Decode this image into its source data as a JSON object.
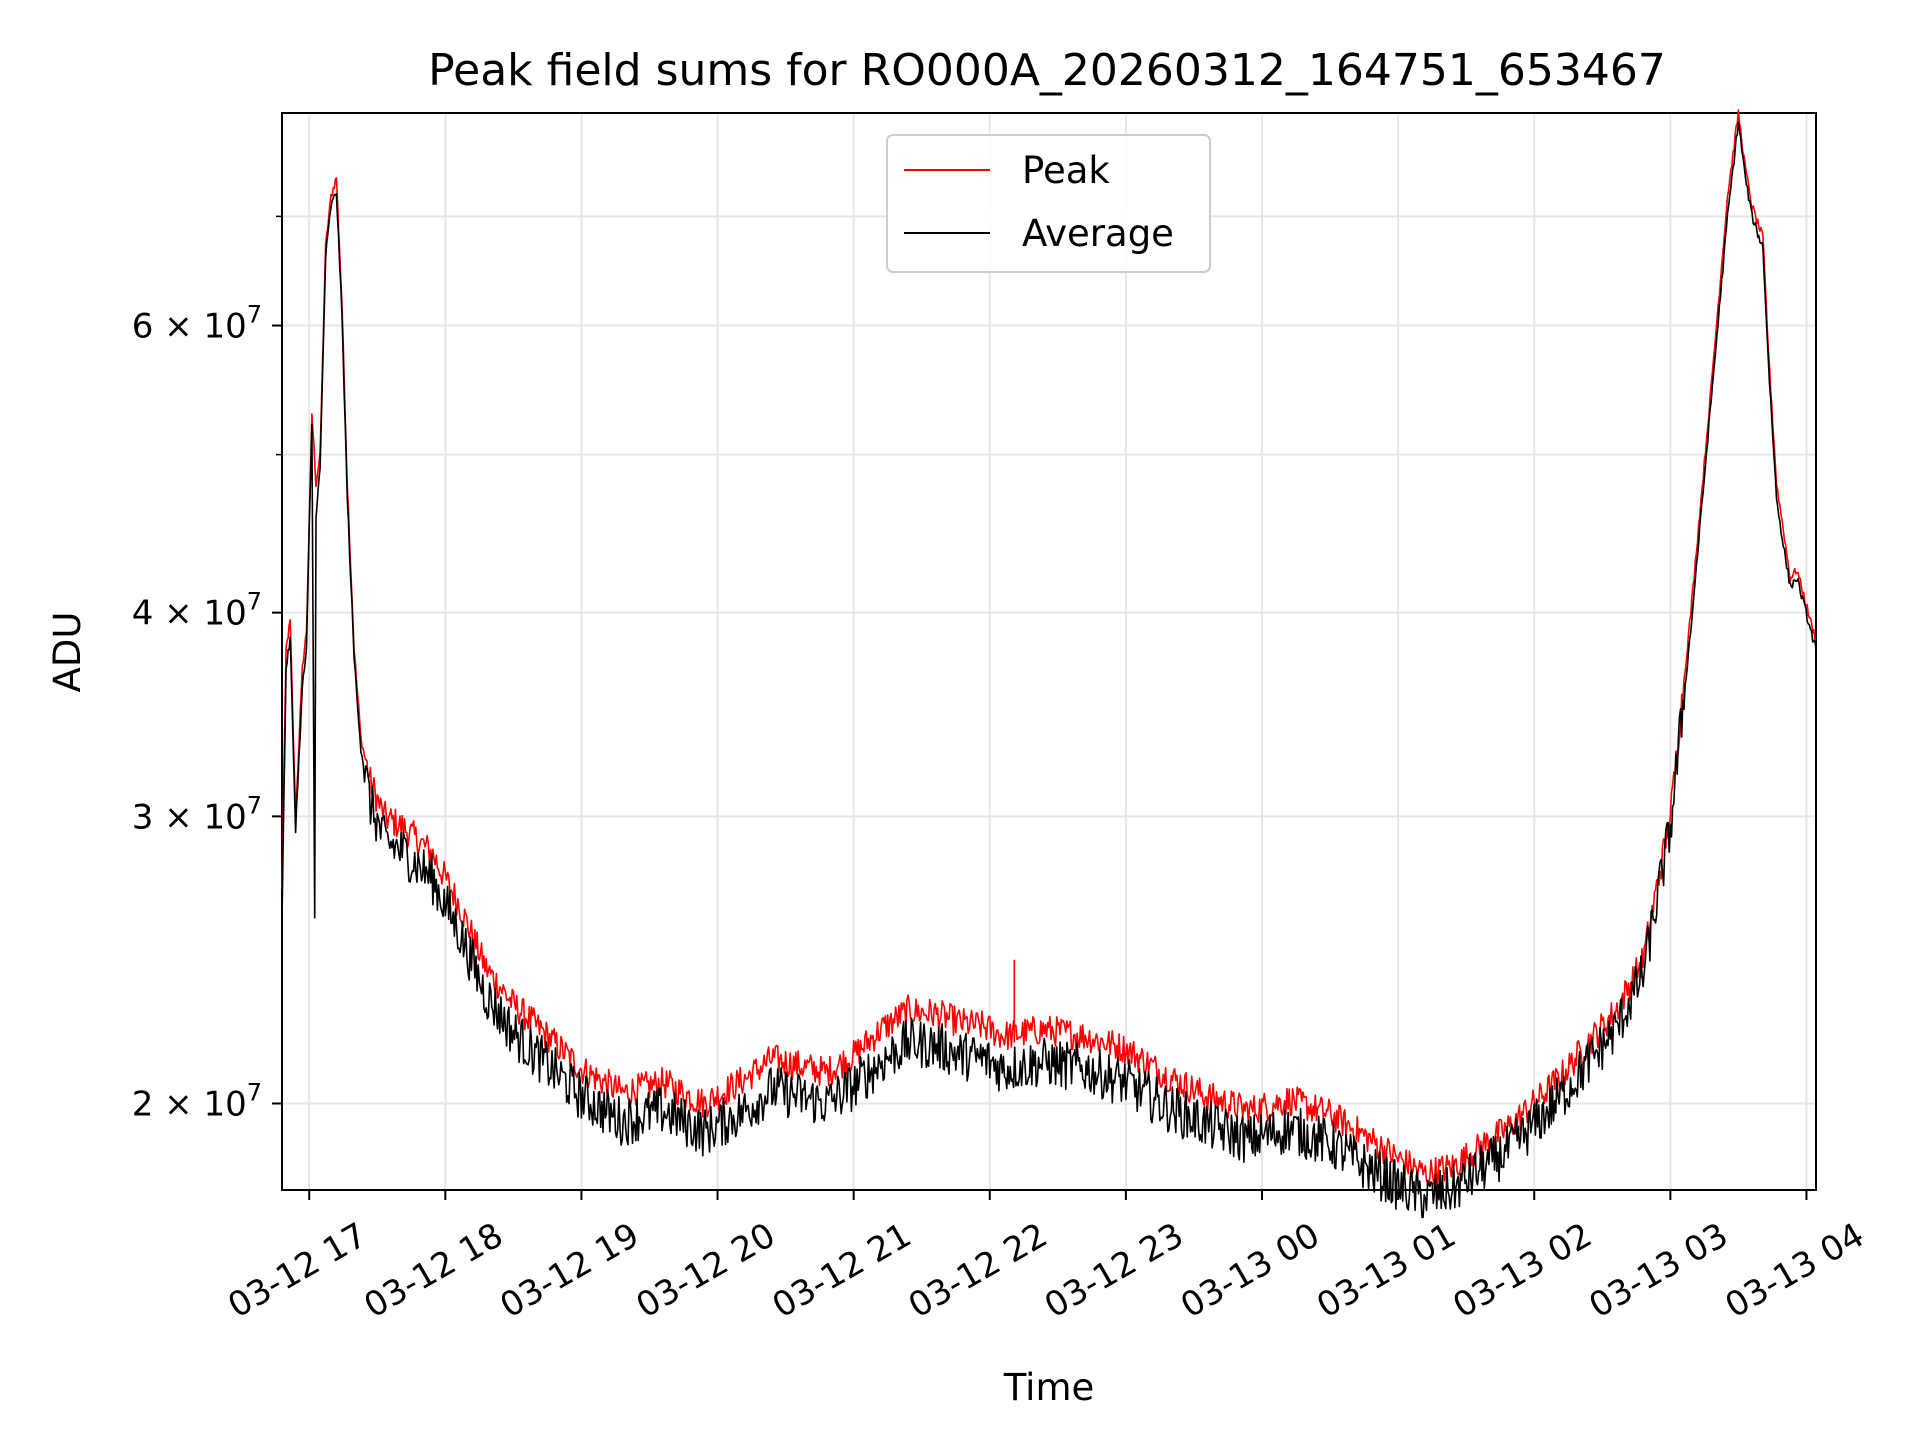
{
  "chart_data": {
    "type": "line",
    "title": "Peak field sums for RO000A_20260312_164751_653467",
    "xlabel": "Time",
    "ylabel": "ADU",
    "y_scale": "log",
    "ylim": [
      17700000,
      81000000
    ],
    "xlim_hours": [
      16.8,
      28.07
    ],
    "grid": true,
    "legend_position": "upper center",
    "x_ticks": [
      {
        "h": 17,
        "label": "03-12 17"
      },
      {
        "h": 18,
        "label": "03-12 18"
      },
      {
        "h": 19,
        "label": "03-12 19"
      },
      {
        "h": 20,
        "label": "03-12 20"
      },
      {
        "h": 21,
        "label": "03-12 21"
      },
      {
        "h": 22,
        "label": "03-12 22"
      },
      {
        "h": 23,
        "label": "03-12 23"
      },
      {
        "h": 24,
        "label": "03-13 00"
      },
      {
        "h": 25,
        "label": "03-13 01"
      },
      {
        "h": 26,
        "label": "03-13 02"
      },
      {
        "h": 27,
        "label": "03-13 03"
      },
      {
        "h": 28,
        "label": "03-13 04"
      }
    ],
    "y_ticks": [
      {
        "value": 20000000,
        "mant": "2",
        "exp": "7"
      },
      {
        "value": 30000000,
        "mant": "3",
        "exp": "7"
      },
      {
        "value": 40000000,
        "mant": "4",
        "exp": "7"
      },
      {
        "value": 60000000,
        "mant": "6",
        "exp": "7"
      }
    ],
    "y_minor_ticks": [
      50000000,
      70000000
    ],
    "series": [
      {
        "name": "Peak",
        "color": "#ff0000",
        "x_hours": [
          16.8,
          16.83,
          16.86,
          16.9,
          16.95,
          16.98,
          17.02,
          17.05,
          17.08,
          17.12,
          17.16,
          17.2,
          17.24,
          17.28,
          17.33,
          17.38,
          17.45,
          17.55,
          17.7,
          17.9,
          18.1,
          18.3,
          18.5,
          18.7,
          19.0,
          19.3,
          19.6,
          19.9,
          20.2,
          20.4,
          20.6,
          20.8,
          21.0,
          21.2,
          21.4,
          21.6,
          21.8,
          21.95,
          22.1,
          22.4,
          22.7,
          23.0,
          23.3,
          23.6,
          23.9,
          24.2,
          24.5,
          24.8,
          25.0,
          25.2,
          25.4,
          25.6,
          25.8,
          26.0,
          26.2,
          26.4,
          26.6,
          26.8,
          27.0,
          27.15,
          27.3,
          27.42,
          27.5,
          27.55,
          27.6,
          27.65,
          27.68,
          27.72,
          27.78,
          27.83,
          27.88,
          27.93,
          27.98,
          28.03,
          28.07
        ],
        "values": [
          27000000,
          38000000,
          39500000,
          30000000,
          37000000,
          39000000,
          53000000,
          48000000,
          50000000,
          67000000,
          72000000,
          74000000,
          62000000,
          48000000,
          38000000,
          33500000,
          31500000,
          30000000,
          29500000,
          28500000,
          26500000,
          24200000,
          23000000,
          22200000,
          21000000,
          20300000,
          20600000,
          20000000,
          20700000,
          21300000,
          21100000,
          20900000,
          21400000,
          22200000,
          22800000,
          22700000,
          22400000,
          22300000,
          22000000,
          22200000,
          22000000,
          21600000,
          20800000,
          20200000,
          19800000,
          20100000,
          19700000,
          19000000,
          18500000,
          18100000,
          18300000,
          18800000,
          19300000,
          20000000,
          20800000,
          21800000,
          22800000,
          24500000,
          30000000,
          40000000,
          55000000,
          72000000,
          81000000,
          75000000,
          71000000,
          69000000,
          68000000,
          58000000,
          48000000,
          45000000,
          42000000,
          42500000,
          41000000,
          39500000,
          38500000
        ]
      },
      {
        "name": "Average",
        "color": "#000000",
        "x_hours": [
          16.8,
          16.83,
          16.86,
          16.9,
          16.95,
          16.98,
          17.0,
          17.02,
          17.04,
          17.05,
          17.08,
          17.12,
          17.16,
          17.2,
          17.24,
          17.28,
          17.33,
          17.38,
          17.45,
          17.55,
          17.7,
          17.9,
          18.1,
          18.3,
          18.5,
          18.7,
          19.0,
          19.3,
          19.6,
          19.9,
          20.2,
          20.4,
          20.6,
          20.8,
          21.0,
          21.2,
          21.4,
          21.6,
          21.8,
          21.95,
          22.1,
          22.4,
          22.7,
          23.0,
          23.3,
          23.6,
          23.9,
          24.2,
          24.5,
          24.8,
          25.0,
          25.2,
          25.4,
          25.6,
          25.8,
          26.0,
          26.2,
          26.4,
          26.6,
          26.8,
          27.0,
          27.15,
          27.3,
          27.42,
          27.5,
          27.55,
          27.6,
          27.65,
          27.68,
          27.72,
          27.78,
          27.83,
          27.88,
          27.93,
          27.98,
          28.03,
          28.07
        ],
        "values": [
          26000000,
          37000000,
          38500000,
          29500000,
          36000000,
          38000000,
          45000000,
          52000000,
          26000000,
          46000000,
          49000000,
          66000000,
          71000000,
          72500000,
          61000000,
          47000000,
          37500000,
          33000000,
          30500000,
          29000000,
          28500000,
          27500000,
          25500000,
          23300000,
          22100000,
          21300000,
          20200000,
          19500000,
          19800000,
          19200000,
          19800000,
          20400000,
          20200000,
          20000000,
          20500000,
          21200000,
          21800000,
          21700000,
          21400000,
          21300000,
          21000000,
          21200000,
          21000000,
          20600000,
          19900000,
          19400000,
          19000000,
          19300000,
          18900000,
          18200000,
          17800000,
          17500000,
          17700000,
          18200000,
          18700000,
          19400000,
          20200000,
          21200000,
          22200000,
          24000000,
          29500000,
          39000000,
          54000000,
          70000000,
          80000000,
          74000000,
          70000000,
          68000000,
          67000000,
          57000000,
          47000000,
          44000000,
          41500000,
          42000000,
          40500000,
          39000000,
          38000000
        ]
      }
    ]
  }
}
